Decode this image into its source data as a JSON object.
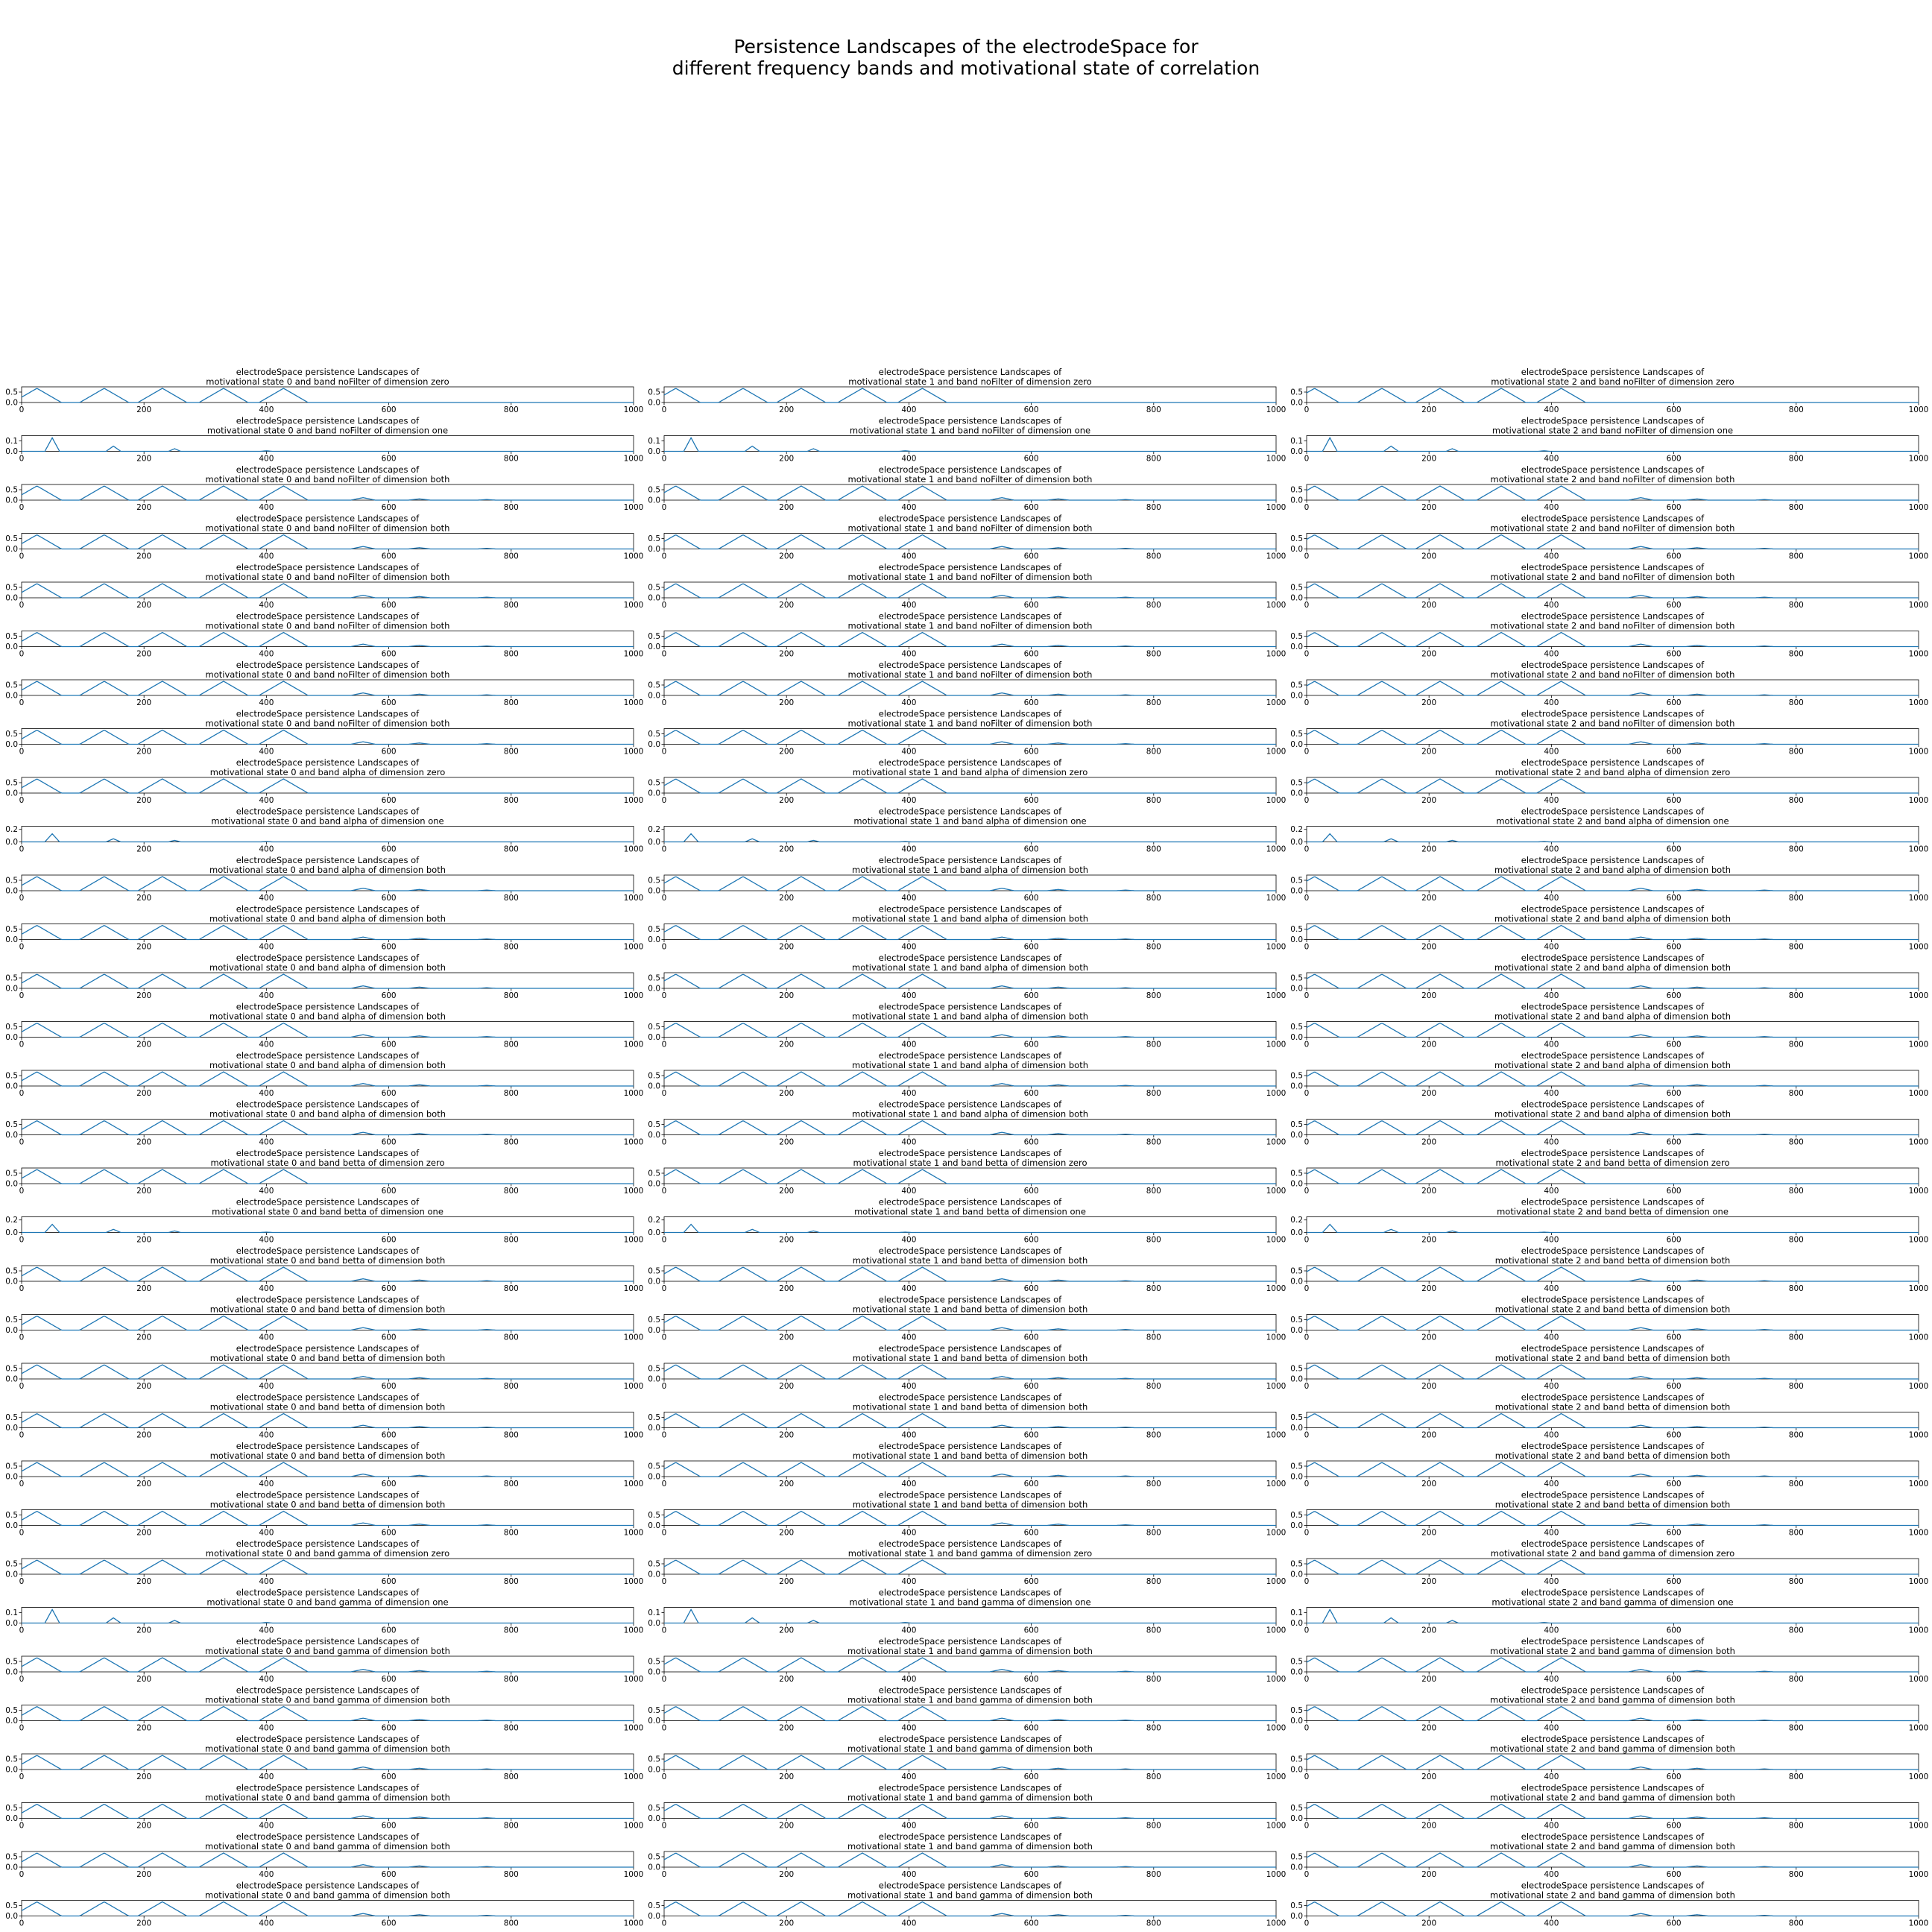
{
  "figure": {
    "title_line1": "Persistence Landscapes of the electrodeSpace for",
    "title_line2": "different frequency bands and motivational state of correlation",
    "line_color": "#1f77b4",
    "subplot_title_line1": "electrodeSpace persistence Landscapes of"
  },
  "chart_data": {
    "type": "line",
    "grid": false,
    "xlim": [
      0,
      1000
    ],
    "x_ticks": [
      0,
      200,
      400,
      600,
      800,
      1000
    ],
    "columns": [
      "motivational state 0",
      "motivational state 1",
      "motivational state 2"
    ],
    "rows": [
      {
        "band": "noFilter",
        "dimension": "zero",
        "ylim": [
          0,
          0.75
        ],
        "y_ticks": [
          "0.0",
          "0.5"
        ]
      },
      {
        "band": "noFilter",
        "dimension": "one",
        "ylim": [
          0,
          0.15
        ],
        "y_ticks": [
          "0.0",
          "0.1"
        ]
      },
      {
        "band": "noFilter",
        "dimension": "both",
        "ylim": [
          0,
          0.75
        ],
        "y_ticks": [
          "0.0",
          "0.5"
        ]
      },
      {
        "band": "noFilter",
        "dimension": "both",
        "ylim": [
          0,
          0.75
        ],
        "y_ticks": [
          "0.0",
          "0.5"
        ]
      },
      {
        "band": "noFilter",
        "dimension": "both",
        "ylim": [
          0,
          0.75
        ],
        "y_ticks": [
          "0.0",
          "0.5"
        ]
      },
      {
        "band": "noFilter",
        "dimension": "both",
        "ylim": [
          0,
          0.75
        ],
        "y_ticks": [
          "0.0",
          "0.5"
        ]
      },
      {
        "band": "noFilter",
        "dimension": "both",
        "ylim": [
          0,
          0.75
        ],
        "y_ticks": [
          "0.0",
          "0.5"
        ]
      },
      {
        "band": "noFilter",
        "dimension": "both",
        "ylim": [
          0,
          0.75
        ],
        "y_ticks": [
          "0.0",
          "0.5"
        ]
      },
      {
        "band": "alpha",
        "dimension": "zero",
        "ylim": [
          0,
          0.75
        ],
        "y_ticks": [
          "0.0",
          "0.5"
        ]
      },
      {
        "band": "alpha",
        "dimension": "one",
        "ylim": [
          0,
          0.25
        ],
        "y_ticks": [
          "0.0",
          "0.2"
        ]
      },
      {
        "band": "alpha",
        "dimension": "both",
        "ylim": [
          0,
          0.75
        ],
        "y_ticks": [
          "0.0",
          "0.5"
        ]
      },
      {
        "band": "alpha",
        "dimension": "both",
        "ylim": [
          0,
          0.75
        ],
        "y_ticks": [
          "0.0",
          "0.5"
        ]
      },
      {
        "band": "alpha",
        "dimension": "both",
        "ylim": [
          0,
          0.75
        ],
        "y_ticks": [
          "0.0",
          "0.5"
        ]
      },
      {
        "band": "alpha",
        "dimension": "both",
        "ylim": [
          0,
          0.75
        ],
        "y_ticks": [
          "0.0",
          "0.5"
        ]
      },
      {
        "band": "alpha",
        "dimension": "both",
        "ylim": [
          0,
          0.75
        ],
        "y_ticks": [
          "0.0",
          "0.5"
        ]
      },
      {
        "band": "alpha",
        "dimension": "both",
        "ylim": [
          0,
          0.75
        ],
        "y_ticks": [
          "0.0",
          "0.5"
        ]
      },
      {
        "band": "betta",
        "dimension": "zero",
        "ylim": [
          0,
          0.75
        ],
        "y_ticks": [
          "0.0",
          "0.5"
        ]
      },
      {
        "band": "betta",
        "dimension": "one",
        "ylim": [
          0,
          0.25
        ],
        "y_ticks": [
          "0.0",
          "0.2"
        ]
      },
      {
        "band": "betta",
        "dimension": "both",
        "ylim": [
          0,
          0.75
        ],
        "y_ticks": [
          "0.0",
          "0.5"
        ]
      },
      {
        "band": "betta",
        "dimension": "both",
        "ylim": [
          0,
          0.75
        ],
        "y_ticks": [
          "0.0",
          "0.5"
        ]
      },
      {
        "band": "betta",
        "dimension": "both",
        "ylim": [
          0,
          0.75
        ],
        "y_ticks": [
          "0.0",
          "0.5"
        ]
      },
      {
        "band": "betta",
        "dimension": "both",
        "ylim": [
          0,
          0.75
        ],
        "y_ticks": [
          "0.0",
          "0.5"
        ]
      },
      {
        "band": "betta",
        "dimension": "both",
        "ylim": [
          0,
          0.75
        ],
        "y_ticks": [
          "0.0",
          "0.5"
        ]
      },
      {
        "band": "betta",
        "dimension": "both",
        "ylim": [
          0,
          0.75
        ],
        "y_ticks": [
          "0.0",
          "0.5"
        ]
      },
      {
        "band": "gamma",
        "dimension": "zero",
        "ylim": [
          0,
          0.75
        ],
        "y_ticks": [
          "0.0",
          "0.5"
        ]
      },
      {
        "band": "gamma",
        "dimension": "one",
        "ylim": [
          0,
          0.15
        ],
        "y_ticks": [
          "0.0",
          "0.1"
        ]
      },
      {
        "band": "gamma",
        "dimension": "both",
        "ylim": [
          0,
          0.75
        ],
        "y_ticks": [
          "0.0",
          "0.5"
        ]
      },
      {
        "band": "gamma",
        "dimension": "both",
        "ylim": [
          0,
          0.75
        ],
        "y_ticks": [
          "0.0",
          "0.5"
        ]
      },
      {
        "band": "gamma",
        "dimension": "both",
        "ylim": [
          0,
          0.75
        ],
        "y_ticks": [
          "0.0",
          "0.5"
        ]
      },
      {
        "band": "gamma",
        "dimension": "both",
        "ylim": [
          0,
          0.75
        ],
        "y_ticks": [
          "0.0",
          "0.5"
        ]
      },
      {
        "band": "gamma",
        "dimension": "both",
        "ylim": [
          0,
          0.75
        ],
        "y_ticks": [
          "0.0",
          "0.5"
        ]
      },
      {
        "band": "gamma",
        "dimension": "both",
        "ylim": [
          0,
          0.75
        ],
        "y_ticks": [
          "0.0",
          "0.5"
        ]
      }
    ],
    "peak_profiles": {
      "zero": [
        {
          "center": 25,
          "half_width": 40,
          "height": 0.68
        },
        {
          "center": 135,
          "half_width": 40,
          "height": 0.68
        },
        {
          "center": 230,
          "half_width": 40,
          "height": 0.68
        },
        {
          "center": 330,
          "half_width": 40,
          "height": 0.68
        },
        {
          "center": 428,
          "half_width": 40,
          "height": 0.68
        }
      ],
      "both": [
        {
          "center": 25,
          "half_width": 40,
          "height": 0.68
        },
        {
          "center": 135,
          "half_width": 40,
          "height": 0.68
        },
        {
          "center": 230,
          "half_width": 40,
          "height": 0.68
        },
        {
          "center": 330,
          "half_width": 40,
          "height": 0.68
        },
        {
          "center": 428,
          "half_width": 40,
          "height": 0.68
        },
        {
          "center": 558,
          "half_width": 20,
          "height": 0.12
        },
        {
          "center": 650,
          "half_width": 18,
          "height": 0.06
        },
        {
          "center": 760,
          "half_width": 15,
          "height": 0.03
        }
      ],
      "one": [
        {
          "center": 50,
          "half_width": 12,
          "height": 0.13
        },
        {
          "center": 150,
          "half_width": 12,
          "height": 0.05
        },
        {
          "center": 250,
          "half_width": 10,
          "height": 0.025
        },
        {
          "center": 400,
          "half_width": 10,
          "height": 0.005
        }
      ]
    }
  }
}
